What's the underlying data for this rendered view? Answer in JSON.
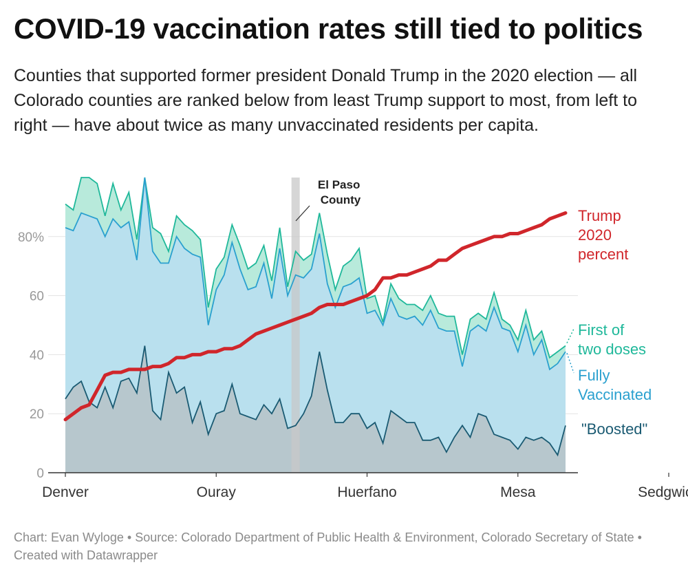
{
  "header": {
    "title": "COVID-19 vaccination rates still tied to politics",
    "subtitle": "Counties that supported former president Donald Trump in the 2020 election — all Colorado counties are ranked below from least Trump support to most, from left to right — have about twice as many unvaccinated residents per capita."
  },
  "footer": {
    "text": "Chart: Evan Wyloge • Source: Colorado Department of Public Health & Environment, Colorado Secretary of State • Created with Datawrapper"
  },
  "colors": {
    "first_dose": "#1fb89a",
    "first_dose_fill": "#b8eadb",
    "fully": "#2aa0cf",
    "fully_fill": "#b9e0ee",
    "boosted": "#1a5a72",
    "boosted_fill": "#b7c7cd",
    "trump": "#d0262b",
    "highlight": "#c8c8c8",
    "grid": "#e3e3e3"
  },
  "chart_data": {
    "type": "area",
    "x_axis_labels": [
      "Denver",
      "Ouray",
      "Huerfano",
      "Mesa",
      "Sedgwick"
    ],
    "x_axis_label_index": [
      0,
      19,
      38,
      57,
      76
    ],
    "county_count": 64,
    "ylim": [
      0,
      100
    ],
    "y_ticks": [
      0,
      20,
      40,
      60,
      80
    ],
    "y_tick_labels": [
      "0",
      "20",
      "40",
      "60",
      "80%"
    ],
    "highlight": {
      "label_line1": "El Paso",
      "label_line2": "County",
      "index": 29
    },
    "series": [
      {
        "name": "First of two doses",
        "label_lines": [
          "First of",
          "two doses"
        ],
        "values": [
          91,
          89,
          100,
          100,
          98,
          87,
          98,
          89,
          95,
          79,
          100,
          83,
          81,
          75,
          87,
          84,
          82,
          79,
          56,
          69,
          73,
          84,
          77,
          69,
          71,
          77,
          65,
          83,
          63,
          75,
          72,
          74,
          88,
          74,
          62,
          70,
          72,
          76,
          59,
          60,
          51,
          64,
          59,
          57,
          57,
          55,
          60,
          54,
          53,
          53,
          40,
          52,
          54,
          52,
          61,
          52,
          50,
          45,
          55,
          45,
          48,
          39,
          41,
          43
        ]
      },
      {
        "name": "Fully Vaccinated",
        "label_lines": [
          "Fully",
          "Vaccinated"
        ],
        "values": [
          83,
          82,
          88,
          87,
          86,
          80,
          86,
          83,
          85,
          72,
          100,
          75,
          71,
          71,
          80,
          76,
          74,
          73,
          50,
          62,
          67,
          78,
          69,
          62,
          63,
          71,
          59,
          76,
          60,
          67,
          66,
          69,
          81,
          64,
          56,
          63,
          64,
          66,
          54,
          55,
          50,
          59,
          53,
          52,
          53,
          50,
          55,
          49,
          48,
          48,
          36,
          48,
          50,
          48,
          56,
          49,
          48,
          41,
          50,
          40,
          45,
          35,
          37,
          41
        ]
      },
      {
        "name": "\"Boosted\"",
        "label_lines": [
          "\"Boosted\""
        ],
        "values": [
          25,
          29,
          31,
          24,
          22,
          29,
          22,
          31,
          32,
          27,
          43,
          21,
          18,
          34,
          27,
          29,
          17,
          24,
          13,
          20,
          21,
          30,
          20,
          19,
          18,
          23,
          20,
          25,
          15,
          16,
          20,
          26,
          41,
          28,
          17,
          17,
          20,
          20,
          15,
          17,
          10,
          21,
          19,
          17,
          17,
          11,
          11,
          12,
          7,
          12,
          16,
          12,
          20,
          19,
          13,
          12,
          11,
          8,
          12,
          11,
          12,
          10,
          6,
          16
        ]
      },
      {
        "name": "Trump 2020 percent",
        "label_lines": [
          "Trump",
          "2020",
          "percent"
        ],
        "values": [
          18,
          20,
          22,
          23,
          28,
          33,
          34,
          34,
          35,
          35,
          35,
          36,
          36,
          37,
          39,
          39,
          40,
          40,
          41,
          41,
          42,
          42,
          43,
          45,
          47,
          48,
          49,
          50,
          51,
          52,
          53,
          54,
          56,
          57,
          57,
          57,
          58,
          59,
          60,
          62,
          66,
          66,
          67,
          67,
          68,
          69,
          70,
          72,
          72,
          74,
          76,
          77,
          78,
          79,
          80,
          80,
          81,
          81,
          82,
          83,
          84,
          86,
          87,
          88
        ]
      }
    ]
  }
}
